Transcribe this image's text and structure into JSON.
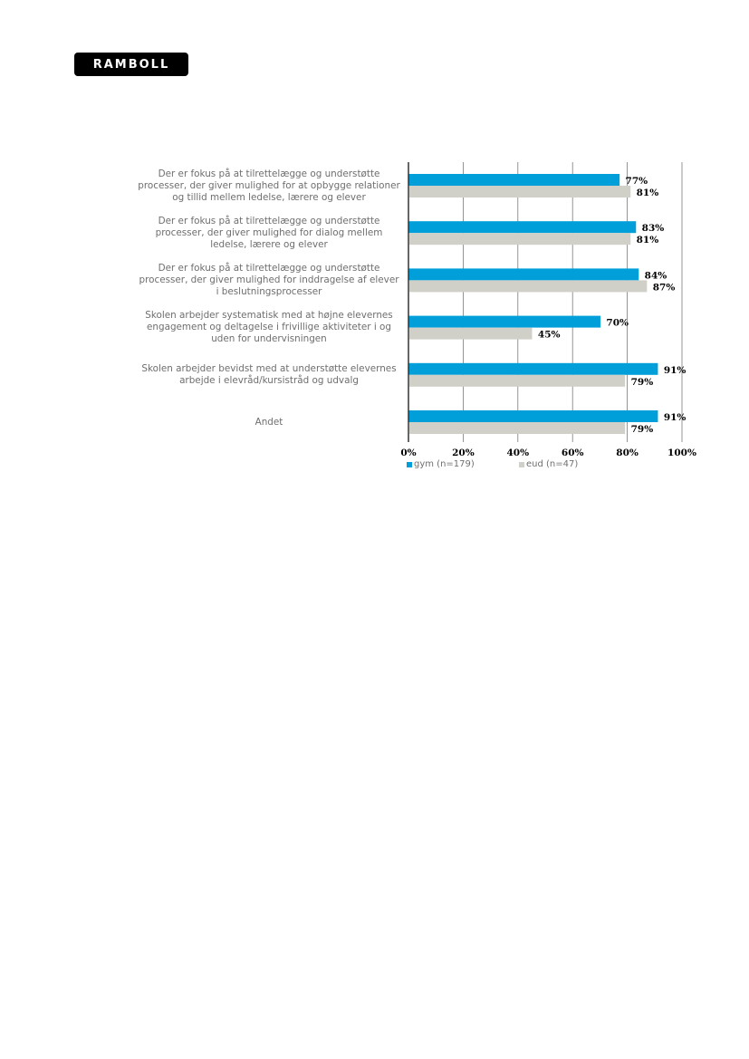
{
  "logo": {
    "text": "RAMBOLL"
  },
  "chart_data": {
    "type": "bar",
    "orientation": "horizontal",
    "categories": [
      "Der er fokus på at tilrettelægge og understøtte processer, der giver mulighed for at opbygge relationer og tillid mellem ledelse, lærere og elever",
      "Der er fokus på at tilrettelægge og understøtte processer, der giver mulighed for dialog mellem ledelse, lærere og elever",
      "Der er fokus på at tilrettelægge og understøtte processer, der giver mulighed for inddragelse af elever i beslutningsprocesser",
      "Skolen arbejder systematisk med at højne elevernes engagement og deltagelse i frivillige aktiviteter i og uden for undervisningen",
      "Skolen arbejder bevidst med at understøtte elevernes arbejde i elevråd/kursistråd og udvalg",
      "Andet"
    ],
    "series": [
      {
        "name": "gym (n=179)",
        "color": "#009fda",
        "values": [
          77,
          83,
          84,
          70,
          91,
          91
        ],
        "labels": [
          "77%",
          "83%",
          "84%",
          "70%",
          "91%",
          "91%"
        ]
      },
      {
        "name": "eud (n=47)",
        "color": "#d0d0c8",
        "values": [
          81,
          81,
          87,
          45,
          79,
          79
        ],
        "labels": [
          "81%",
          "81%",
          "87%",
          "45%",
          "79%",
          "79%"
        ]
      }
    ],
    "xlim": [
      0,
      100
    ],
    "x_ticks": [
      "0%",
      "20%",
      "40%",
      "60%",
      "80%",
      "100%"
    ],
    "grid": true,
    "legend_position": "bottom"
  }
}
